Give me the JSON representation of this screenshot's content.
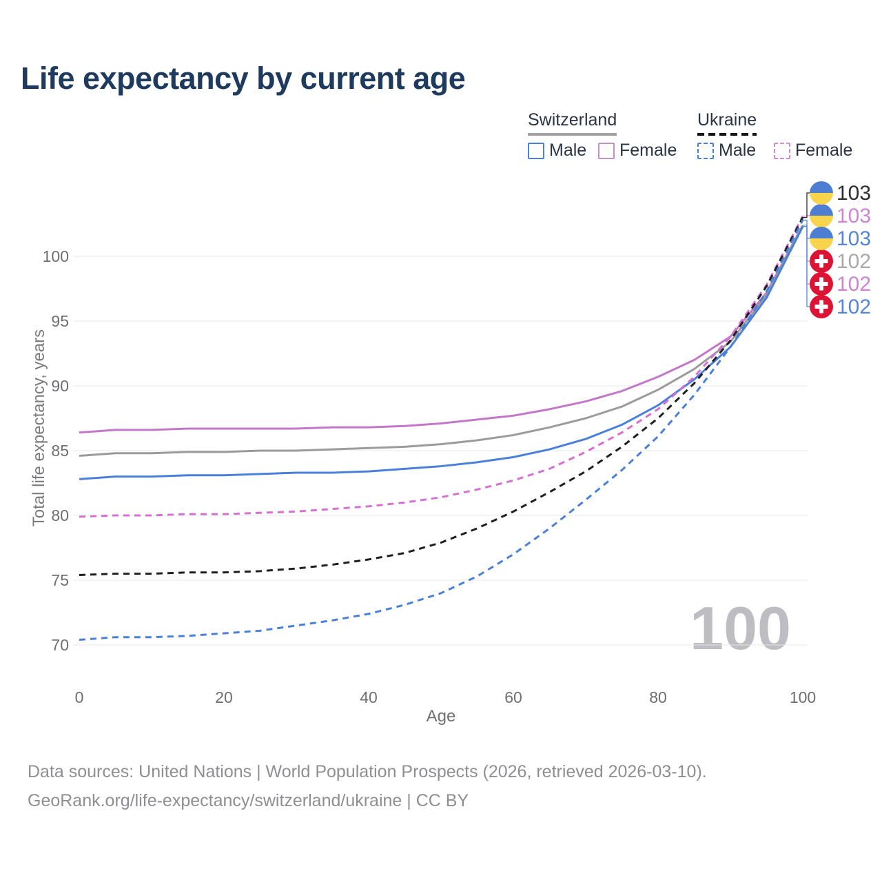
{
  "header": {
    "title": "Life expectancy by current age"
  },
  "legend": {
    "groups": [
      {
        "label": "Switzerland",
        "line_style": "solid",
        "underline_color": "#a2a2a2",
        "items": [
          {
            "label": "Male",
            "color": "#4a80d9",
            "dashed": false
          },
          {
            "label": "Female",
            "color": "#c38fc9",
            "dashed": false
          }
        ]
      },
      {
        "label": "Ukraine",
        "line_style": "dashed",
        "underline_color": "#161616",
        "items": [
          {
            "label": "Male",
            "color": "#4a80d9",
            "dashed": true
          },
          {
            "label": "Female",
            "color": "#d38bd4",
            "dashed": true
          }
        ]
      }
    ]
  },
  "chart_data": {
    "type": "line",
    "title": "Life expectancy by current age",
    "xlabel": "Age",
    "ylabel": "Total life expectancy, years",
    "x_ticks": [
      0,
      20,
      40,
      60,
      80,
      100
    ],
    "y_ticks": [
      70,
      75,
      80,
      85,
      90,
      95,
      100
    ],
    "xlim": [
      0,
      100
    ],
    "ylim": [
      69.5,
      104
    ],
    "grid": "horizontal-only",
    "gridline_color": "#e8e8ea",
    "tick_color": "#6f6f73",
    "legend_position": "top-right",
    "age_indicator": "100",
    "x": [
      0,
      5,
      10,
      15,
      20,
      25,
      30,
      35,
      40,
      45,
      50,
      55,
      60,
      65,
      70,
      75,
      80,
      85,
      90,
      95,
      100
    ],
    "series": [
      {
        "name": "Switzerland Female",
        "country": "Switzerland",
        "sex": "Female",
        "color": "#c377c9",
        "dashed": false,
        "flag": "switzerland-flag-icon",
        "end_label": "102",
        "label_color": "#cd85d2",
        "label_row": 4,
        "values": [
          86.4,
          86.6,
          86.6,
          86.7,
          86.7,
          86.7,
          86.7,
          86.8,
          86.8,
          86.9,
          87.1,
          87.4,
          87.7,
          88.2,
          88.8,
          89.6,
          90.7,
          92.0,
          93.8,
          97.2,
          102.4
        ]
      },
      {
        "name": "Switzerland Both sexes",
        "country": "Switzerland",
        "sex": "Both",
        "color": "#9b9b9b",
        "dashed": false,
        "flag": "switzerland-flag-icon",
        "end_label": "102",
        "label_color": "#a8a8ab",
        "label_row": 3,
        "values": [
          84.6,
          84.8,
          84.8,
          84.9,
          84.9,
          85.0,
          85.0,
          85.1,
          85.2,
          85.3,
          85.5,
          85.8,
          86.2,
          86.8,
          87.5,
          88.4,
          89.7,
          91.3,
          93.4,
          97.0,
          102.4
        ]
      },
      {
        "name": "Switzerland Male",
        "country": "Switzerland",
        "sex": "Male",
        "color": "#4a80d9",
        "dashed": false,
        "flag": "switzerland-flag-icon",
        "end_label": "102",
        "label_color": "#5585da",
        "label_row": 5,
        "values": [
          82.8,
          83.0,
          83.0,
          83.1,
          83.1,
          83.2,
          83.3,
          83.3,
          83.4,
          83.6,
          83.8,
          84.1,
          84.5,
          85.1,
          85.9,
          87.0,
          88.5,
          90.5,
          93.0,
          96.8,
          102.3
        ]
      },
      {
        "name": "Ukraine Female",
        "country": "Ukraine",
        "sex": "Female",
        "color": "#d76fd3",
        "dashed": true,
        "flag": "ukraine-flag-icon",
        "end_label": "103",
        "label_color": "#cd85d2",
        "label_row": 1,
        "values": [
          79.9,
          80.0,
          80.0,
          80.1,
          80.1,
          80.2,
          80.3,
          80.5,
          80.7,
          81.0,
          81.4,
          82.0,
          82.7,
          83.6,
          84.9,
          86.4,
          88.2,
          90.7,
          93.8,
          97.8,
          103.1
        ]
      },
      {
        "name": "Ukraine Both sexes",
        "country": "Ukraine",
        "sex": "Both",
        "color": "#1f1f1f",
        "dashed": true,
        "flag": "ukraine-flag-icon",
        "end_label": "103",
        "label_color": "#2c2c2c",
        "label_row": 0,
        "values": [
          75.4,
          75.5,
          75.5,
          75.6,
          75.6,
          75.7,
          75.9,
          76.2,
          76.6,
          77.1,
          77.9,
          79.0,
          80.3,
          81.8,
          83.4,
          85.3,
          87.5,
          90.2,
          93.5,
          97.7,
          103.0
        ]
      },
      {
        "name": "Ukraine Male",
        "country": "Ukraine",
        "sex": "Male",
        "color": "#4a80d9",
        "dashed": true,
        "flag": "ukraine-flag-icon",
        "end_label": "103",
        "label_color": "#5585da",
        "label_row": 2,
        "values": [
          70.4,
          70.6,
          70.6,
          70.7,
          70.9,
          71.1,
          71.5,
          71.9,
          72.4,
          73.1,
          74.0,
          75.3,
          77.0,
          79.0,
          81.2,
          83.5,
          86.1,
          89.3,
          93.0,
          97.3,
          102.8
        ]
      }
    ],
    "flag_colors": {
      "ukraine_blue": "#4d7ed2",
      "ukraine_yellow": "#f8d44c",
      "switzerland_red": "#dc1334",
      "switzerland_cross": "#ffffff"
    }
  },
  "footer": {
    "line1": "Data sources: United Nations | World Population Prospects (2026, retrieved 2026-03-10).",
    "line2": "GeoRank.org/life-expectancy/switzerland/ukraine | CC BY"
  }
}
